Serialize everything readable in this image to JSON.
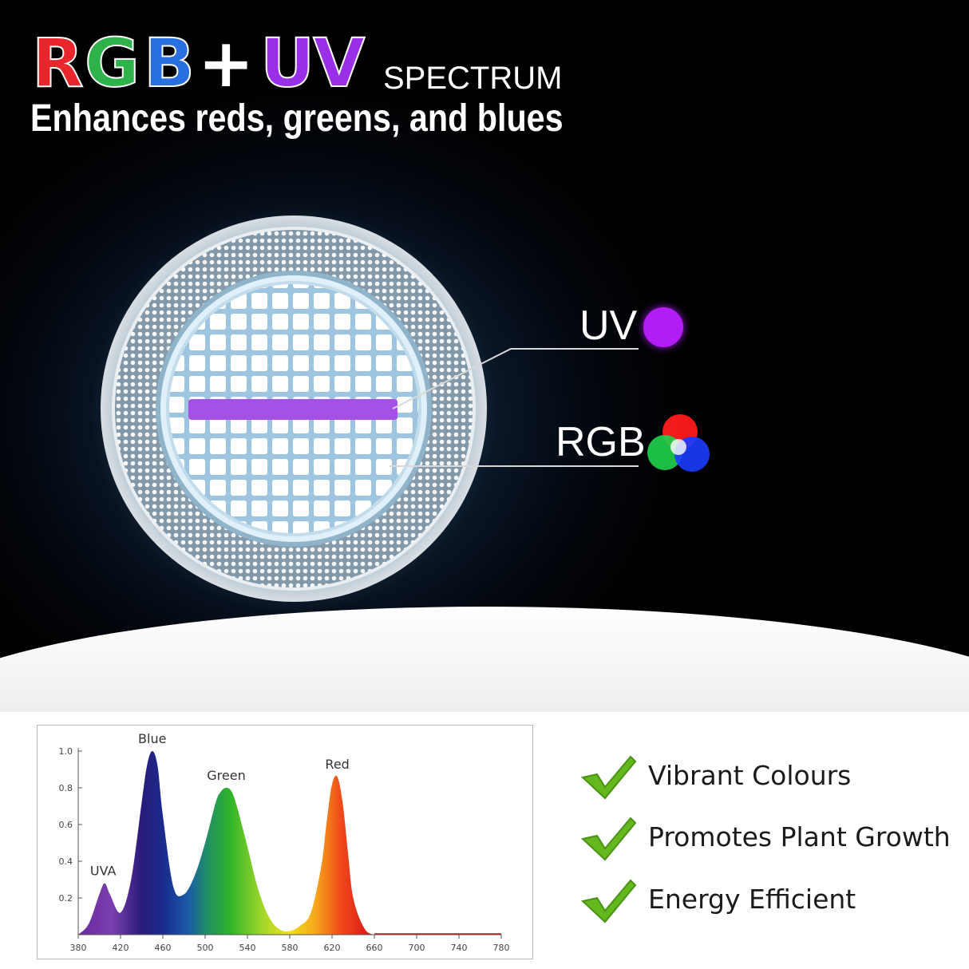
{
  "header": {
    "title_parts": [
      {
        "text": "R",
        "color": "#e8262b"
      },
      {
        "text": "G",
        "color": "#2db34a"
      },
      {
        "text": "B",
        "color": "#2a6fe0"
      },
      {
        "text": "+",
        "color": "#ffffff"
      },
      {
        "text": "UV",
        "color": "#9a2fe8"
      }
    ],
    "title_suffix": "SPECTRUM",
    "subtitle": "Enhances reds, greens, and blues"
  },
  "callouts": {
    "uv_label": "UV",
    "rgb_label": "RGB",
    "uv_color": "#b21cf5",
    "rgb_colors": [
      "#ff1a1a",
      "#1fd24a",
      "#1a3cff"
    ]
  },
  "features": [
    {
      "label": "Vibrant Colours",
      "icon": "check-icon"
    },
    {
      "label": "Promotes Plant Growth",
      "icon": "check-icon"
    },
    {
      "label": "Energy Efficient",
      "icon": "check-icon"
    }
  ],
  "chart_data": {
    "type": "area",
    "title": "",
    "xlabel": "",
    "ylabel": "",
    "xlim": [
      380,
      780
    ],
    "ylim": [
      0,
      1.0
    ],
    "x_ticks": [
      "380",
      "420",
      "460",
      "500",
      "540",
      "580",
      "620",
      "660",
      "700",
      "740",
      "780"
    ],
    "y_ticks": [
      "0.2",
      "0.4",
      "0.6",
      "0.8",
      "1.0"
    ],
    "peaks": [
      {
        "name": "UVA",
        "x": 402,
        "y": 0.28
      },
      {
        "name": "Blue",
        "x": 450,
        "y": 1.0
      },
      {
        "name": "Green",
        "x": 520,
        "y": 0.8
      },
      {
        "name": "Red",
        "x": 625,
        "y": 0.86
      }
    ],
    "series": [
      {
        "x": [
          380,
          390,
          400,
          405,
          410,
          420,
          430,
          440,
          445,
          450,
          455,
          460,
          470,
          480,
          490,
          500,
          510,
          515,
          520,
          525,
          530,
          540,
          550,
          560,
          570,
          580,
          590,
          600,
          610,
          615,
          620,
          625,
          630,
          635,
          640,
          650,
          660,
          680,
          720,
          780
        ],
        "values": [
          0.0,
          0.06,
          0.22,
          0.28,
          0.22,
          0.12,
          0.3,
          0.72,
          0.92,
          1.0,
          0.92,
          0.65,
          0.26,
          0.22,
          0.32,
          0.5,
          0.72,
          0.78,
          0.8,
          0.78,
          0.7,
          0.48,
          0.25,
          0.1,
          0.03,
          0.02,
          0.05,
          0.12,
          0.38,
          0.62,
          0.82,
          0.86,
          0.72,
          0.45,
          0.2,
          0.04,
          0.0,
          0.0,
          0.0,
          0.0
        ]
      }
    ]
  }
}
